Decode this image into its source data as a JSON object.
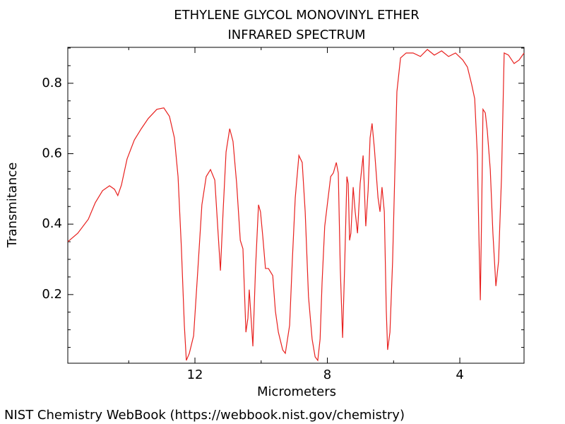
{
  "chart_data": {
    "type": "line",
    "title": "ETHYLENE GLYCOL MONOVINYL ETHER",
    "subtitle": "INFRARED SPECTRUM",
    "xlabel": "Micrometers",
    "ylabel": "Transmitance",
    "footer": "NIST Chemistry WebBook (https://webbook.nist.gov/chemistry)",
    "xlim": [
      15.84,
      2.06
    ],
    "ylim": [
      0.005,
      0.902
    ],
    "xticks": [
      12,
      8,
      4
    ],
    "xminor": [
      14,
      10,
      6
    ],
    "yticks": [
      0.2,
      0.4,
      0.6,
      0.8
    ],
    "yminor": [
      0.05,
      0.1,
      0.15,
      0.25,
      0.3,
      0.35,
      0.45,
      0.5,
      0.55,
      0.65,
      0.7,
      0.75,
      0.85,
      0.9
    ],
    "series": [
      {
        "color": "#e8201e",
        "x": [
          15.84,
          15.54,
          15.22,
          15.01,
          14.79,
          14.58,
          14.43,
          14.33,
          14.22,
          14.05,
          13.83,
          13.62,
          13.41,
          13.15,
          12.94,
          12.77,
          12.62,
          12.51,
          12.41,
          12.32,
          12.26,
          12.17,
          12.04,
          11.91,
          11.79,
          11.66,
          11.53,
          11.4,
          11.3,
          11.23,
          11.15,
          11.06,
          10.95,
          10.85,
          10.74,
          10.63,
          10.55,
          10.46,
          10.4,
          10.36,
          10.29,
          10.25,
          10.17,
          10.08,
          10.02,
          9.95,
          9.87,
          9.78,
          9.65,
          9.57,
          9.48,
          9.35,
          9.27,
          9.14,
          9.06,
          8.97,
          8.86,
          8.76,
          8.67,
          8.57,
          8.46,
          8.37,
          8.29,
          8.22,
          8.16,
          8.08,
          7.99,
          7.9,
          7.82,
          7.73,
          7.67,
          7.61,
          7.54,
          7.48,
          7.41,
          7.37,
          7.33,
          7.29,
          7.22,
          7.16,
          7.09,
          7.01,
          6.92,
          6.84,
          6.77,
          6.71,
          6.65,
          6.58,
          6.47,
          6.41,
          6.35,
          6.28,
          6.22,
          6.18,
          6.11,
          6.03,
          5.96,
          5.9,
          5.79,
          5.62,
          5.41,
          5.19,
          4.98,
          4.77,
          4.55,
          4.34,
          4.13,
          3.91,
          3.77,
          3.64,
          3.55,
          3.47,
          3.42,
          3.38,
          3.34,
          3.3,
          3.23,
          3.17,
          3.08,
          3.0,
          2.91,
          2.83,
          2.74,
          2.66,
          2.53,
          2.36,
          2.21,
          2.06
        ],
        "values": [
          0.35,
          0.374,
          0.414,
          0.461,
          0.495,
          0.509,
          0.499,
          0.481,
          0.511,
          0.585,
          0.639,
          0.671,
          0.7,
          0.726,
          0.73,
          0.706,
          0.645,
          0.535,
          0.334,
          0.113,
          0.013,
          0.033,
          0.083,
          0.274,
          0.455,
          0.535,
          0.555,
          0.525,
          0.374,
          0.268,
          0.435,
          0.605,
          0.671,
          0.635,
          0.515,
          0.354,
          0.33,
          0.093,
          0.133,
          0.214,
          0.113,
          0.053,
          0.274,
          0.455,
          0.435,
          0.364,
          0.274,
          0.274,
          0.254,
          0.153,
          0.093,
          0.043,
          0.033,
          0.113,
          0.294,
          0.475,
          0.595,
          0.575,
          0.435,
          0.194,
          0.073,
          0.023,
          0.013,
          0.073,
          0.234,
          0.394,
          0.465,
          0.535,
          0.545,
          0.575,
          0.545,
          0.274,
          0.077,
          0.274,
          0.535,
          0.515,
          0.354,
          0.374,
          0.505,
          0.435,
          0.374,
          0.515,
          0.595,
          0.394,
          0.495,
          0.645,
          0.686,
          0.615,
          0.475,
          0.435,
          0.505,
          0.435,
          0.153,
          0.043,
          0.093,
          0.294,
          0.555,
          0.776,
          0.872,
          0.886,
          0.886,
          0.876,
          0.896,
          0.88,
          0.892,
          0.876,
          0.886,
          0.866,
          0.846,
          0.796,
          0.756,
          0.595,
          0.354,
          0.184,
          0.435,
          0.726,
          0.716,
          0.665,
          0.555,
          0.374,
          0.224,
          0.294,
          0.535,
          0.886,
          0.88,
          0.856,
          0.866,
          0.886
        ]
      }
    ]
  }
}
